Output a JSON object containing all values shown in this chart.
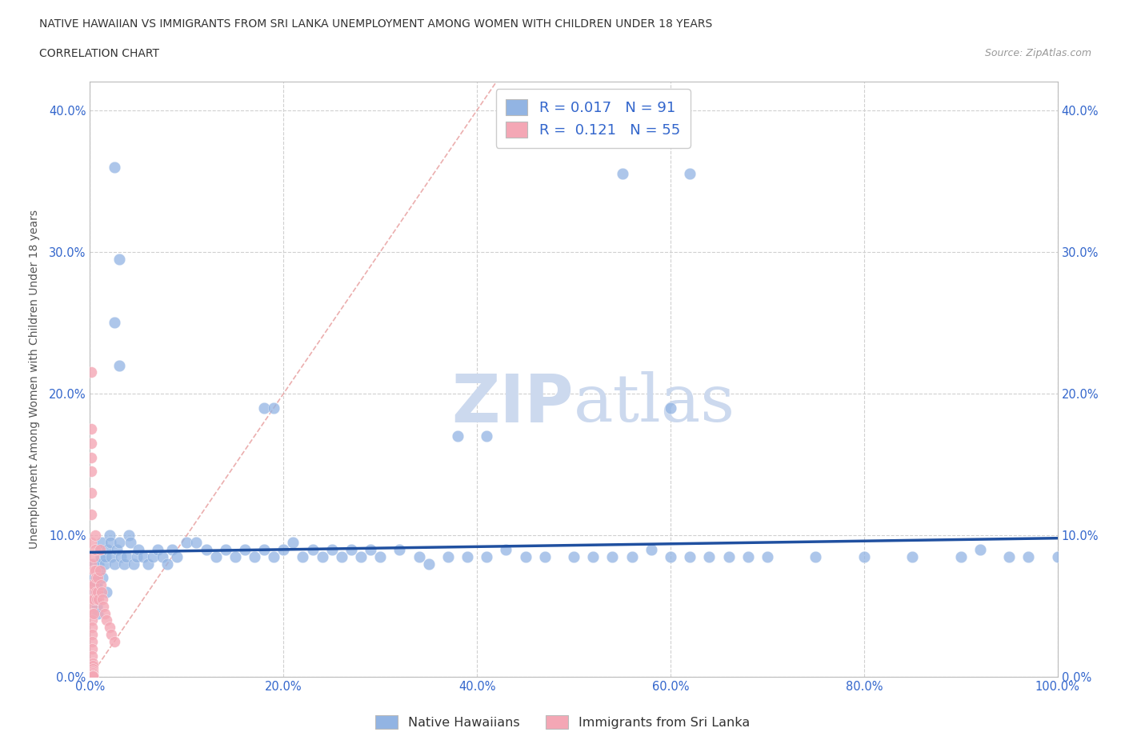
{
  "title_line1": "NATIVE HAWAIIAN VS IMMIGRANTS FROM SRI LANKA UNEMPLOYMENT AMONG WOMEN WITH CHILDREN UNDER 18 YEARS",
  "title_line2": "CORRELATION CHART",
  "source_text": "Source: ZipAtlas.com",
  "ylabel": "Unemployment Among Women with Children Under 18 years",
  "xlim": [
    0.0,
    1.0
  ],
  "ylim": [
    0.0,
    0.42
  ],
  "xticks": [
    0.0,
    0.2,
    0.4,
    0.6,
    0.8,
    1.0
  ],
  "xtick_labels": [
    "0.0%",
    "20.0%",
    "40.0%",
    "60.0%",
    "80.0%",
    "100.0%"
  ],
  "yticks": [
    0.0,
    0.1,
    0.2,
    0.3,
    0.4
  ],
  "ytick_labels": [
    "0.0%",
    "10.0%",
    "20.0%",
    "30.0%",
    "40.0%"
  ],
  "color_blue": "#92b4e3",
  "color_pink": "#f4a7b5",
  "trend_line_color": "#2050a0",
  "diag_line_color": "#e8a0a0",
  "watermark_color": "#ccd9ee",
  "legend_R1": "0.017",
  "legend_N1": "91",
  "legend_R2": "0.121",
  "legend_N2": "55",
  "legend_label1": "Native Hawaiians",
  "legend_label2": "Immigrants from Sri Lanka",
  "native_hawaiian_x": [
    0.003,
    0.003,
    0.004,
    0.005,
    0.005,
    0.006,
    0.007,
    0.007,
    0.008,
    0.008,
    0.009,
    0.01,
    0.01,
    0.011,
    0.012,
    0.013,
    0.015,
    0.016,
    0.017,
    0.018,
    0.02,
    0.021,
    0.022,
    0.025,
    0.028,
    0.03,
    0.032,
    0.035,
    0.038,
    0.04,
    0.042,
    0.045,
    0.048,
    0.05,
    0.055,
    0.06,
    0.065,
    0.07,
    0.075,
    0.08,
    0.085,
    0.09,
    0.1,
    0.11,
    0.12,
    0.13,
    0.14,
    0.15,
    0.16,
    0.17,
    0.18,
    0.19,
    0.2,
    0.21,
    0.22,
    0.23,
    0.24,
    0.25,
    0.26,
    0.27,
    0.28,
    0.29,
    0.3,
    0.32,
    0.34,
    0.35,
    0.37,
    0.39,
    0.41,
    0.43,
    0.45,
    0.47,
    0.5,
    0.52,
    0.54,
    0.56,
    0.58,
    0.6,
    0.62,
    0.64,
    0.66,
    0.68,
    0.7,
    0.75,
    0.8,
    0.85,
    0.9,
    0.92,
    0.95,
    0.97,
    1.0
  ],
  "native_hawaiian_y": [
    0.08,
    0.07,
    0.06,
    0.065,
    0.055,
    0.07,
    0.065,
    0.05,
    0.06,
    0.045,
    0.08,
    0.09,
    0.075,
    0.085,
    0.095,
    0.07,
    0.08,
    0.085,
    0.06,
    0.09,
    0.1,
    0.095,
    0.085,
    0.08,
    0.09,
    0.095,
    0.085,
    0.08,
    0.085,
    0.1,
    0.095,
    0.08,
    0.085,
    0.09,
    0.085,
    0.08,
    0.085,
    0.09,
    0.085,
    0.08,
    0.09,
    0.085,
    0.095,
    0.095,
    0.09,
    0.085,
    0.09,
    0.085,
    0.09,
    0.085,
    0.09,
    0.085,
    0.09,
    0.095,
    0.085,
    0.09,
    0.085,
    0.09,
    0.085,
    0.09,
    0.085,
    0.09,
    0.085,
    0.09,
    0.085,
    0.08,
    0.085,
    0.085,
    0.085,
    0.09,
    0.085,
    0.085,
    0.085,
    0.085,
    0.085,
    0.085,
    0.09,
    0.085,
    0.085,
    0.085,
    0.085,
    0.085,
    0.085,
    0.085,
    0.085,
    0.085,
    0.085,
    0.09,
    0.085,
    0.085,
    0.085
  ],
  "native_hawaiian_outlier_x": [
    0.025,
    0.03,
    0.55,
    0.62,
    0.025,
    0.03,
    0.18,
    0.19,
    0.38,
    0.41,
    0.6
  ],
  "native_hawaiian_outlier_y": [
    0.36,
    0.295,
    0.355,
    0.355,
    0.25,
    0.22,
    0.19,
    0.19,
    0.17,
    0.17,
    0.19
  ],
  "sri_lanka_x": [
    0.001,
    0.001,
    0.001,
    0.001,
    0.001,
    0.001,
    0.001,
    0.001,
    0.001,
    0.001,
    0.002,
    0.002,
    0.002,
    0.002,
    0.002,
    0.002,
    0.002,
    0.002,
    0.002,
    0.002,
    0.003,
    0.003,
    0.003,
    0.003,
    0.003,
    0.003,
    0.003,
    0.003,
    0.003,
    0.003,
    0.004,
    0.004,
    0.004,
    0.004,
    0.004,
    0.005,
    0.005,
    0.005,
    0.006,
    0.006,
    0.007,
    0.008,
    0.008,
    0.009,
    0.01,
    0.01,
    0.011,
    0.012,
    0.013,
    0.014,
    0.015,
    0.017,
    0.02,
    0.022,
    0.025
  ],
  "sri_lanka_y": [
    0.215,
    0.175,
    0.165,
    0.155,
    0.145,
    0.13,
    0.115,
    0.095,
    0.08,
    0.065,
    0.06,
    0.055,
    0.05,
    0.045,
    0.04,
    0.035,
    0.03,
    0.025,
    0.02,
    0.015,
    0.01,
    0.008,
    0.006,
    0.004,
    0.003,
    0.002,
    0.001,
    0.001,
    0.001,
    0.001,
    0.085,
    0.075,
    0.065,
    0.055,
    0.045,
    0.1,
    0.09,
    0.075,
    0.07,
    0.06,
    0.055,
    0.07,
    0.06,
    0.055,
    0.09,
    0.075,
    0.065,
    0.06,
    0.055,
    0.05,
    0.045,
    0.04,
    0.035,
    0.03,
    0.025
  ],
  "trend_line_x": [
    0.0,
    1.0
  ],
  "trend_line_y": [
    0.088,
    0.098
  ]
}
